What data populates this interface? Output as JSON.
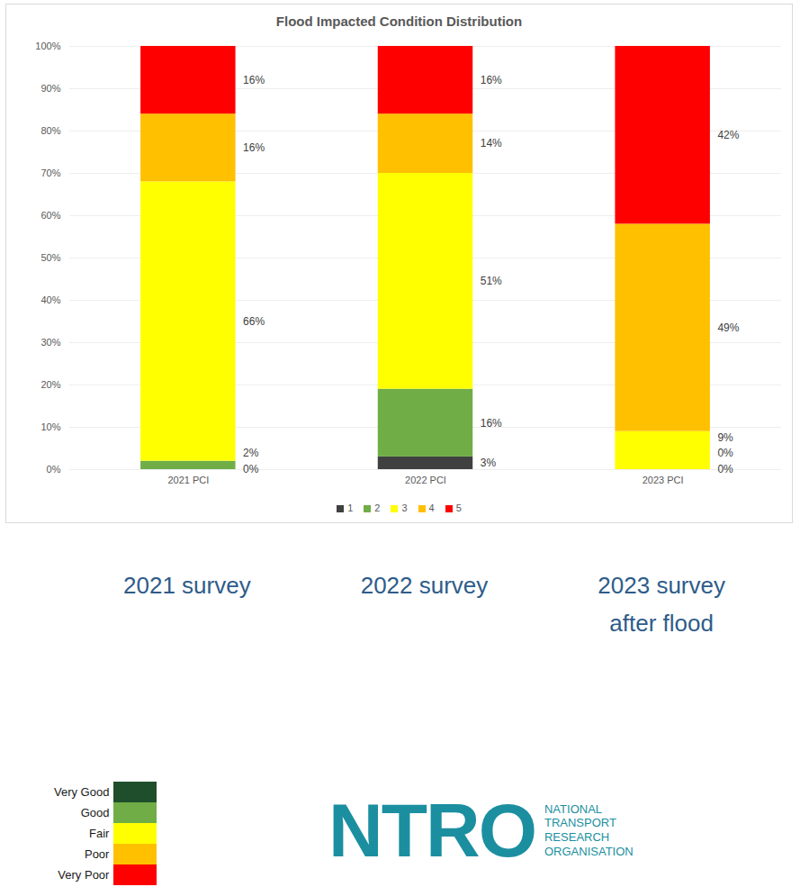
{
  "chart_data": {
    "type": "bar",
    "stacked": true,
    "title": "Flood Impacted Condition Distribution",
    "categories": [
      "2021 PCI",
      "2022 PCI",
      "2023 PCI"
    ],
    "series": [
      {
        "name": "1",
        "color": "#404040",
        "values": [
          0,
          3,
          0
        ],
        "value_labels": [
          "0%",
          "3%",
          "0%"
        ]
      },
      {
        "name": "2",
        "color": "#70ad47",
        "values": [
          2,
          16,
          0
        ],
        "value_labels": [
          "2%",
          "16%",
          "0%"
        ]
      },
      {
        "name": "3",
        "color": "#ffff00",
        "values": [
          66,
          51,
          9
        ],
        "value_labels": [
          "66%",
          "51%",
          "9%"
        ]
      },
      {
        "name": "4",
        "color": "#ffc000",
        "values": [
          16,
          14,
          49
        ],
        "value_labels": [
          "16%",
          "14%",
          "49%"
        ]
      },
      {
        "name": "5",
        "color": "#ff0000",
        "values": [
          16,
          16,
          42
        ],
        "value_labels": [
          "16%",
          "16%",
          "42%"
        ]
      }
    ],
    "ylim": [
      0,
      100
    ],
    "yticks": [
      {
        "value": 0,
        "label": "0%"
      },
      {
        "value": 10,
        "label": "10%"
      },
      {
        "value": 20,
        "label": "20%"
      },
      {
        "value": 30,
        "label": "30%"
      },
      {
        "value": 40,
        "label": "40%"
      },
      {
        "value": 50,
        "label": "50%"
      },
      {
        "value": 60,
        "label": "60%"
      },
      {
        "value": 70,
        "label": "70%"
      },
      {
        "value": 80,
        "label": "80%"
      },
      {
        "value": 90,
        "label": "90%"
      },
      {
        "value": 100,
        "label": "100%"
      }
    ],
    "grid": true,
    "data_labels": true,
    "legend": "bottom",
    "annotations": [
      [
        "2021 survey"
      ],
      [
        "2022 survey"
      ],
      [
        "2023 survey",
        "after flood"
      ]
    ],
    "condition_legend": [
      {
        "label": "Very Good",
        "color": "#1f4e2d"
      },
      {
        "label": "Good",
        "color": "#70ad47"
      },
      {
        "label": "Fair",
        "color": "#ffff00"
      },
      {
        "label": "Poor",
        "color": "#ffc000"
      },
      {
        "label": "Very Poor",
        "color": "#ff0000"
      }
    ],
    "logo": {
      "text": "NTRO",
      "subtitle": [
        "NATIONAL",
        "TRANSPORT",
        "RESEARCH",
        "ORGANISATION"
      ]
    }
  }
}
